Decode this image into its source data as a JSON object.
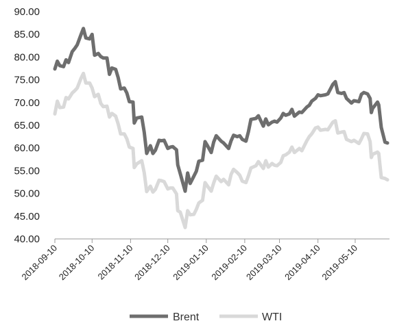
{
  "chart_data": {
    "type": "line",
    "title": "",
    "xlabel": "",
    "ylabel": "",
    "ylim": [
      40,
      90
    ],
    "y_ticks": [
      "40.00",
      "45.00",
      "50.00",
      "55.00",
      "60.00",
      "65.00",
      "70.00",
      "75.00",
      "80.00",
      "85.00",
      "90.00"
    ],
    "x_ticks": [
      "2018-09-10",
      "2018-10-10",
      "2018-11-10",
      "2018-12-10",
      "2019-01-10",
      "2019-02-10",
      "2019-03-10",
      "2019-04-10",
      "2019-05-10"
    ],
    "x_range": [
      "2018-09-10",
      "2019-06-05"
    ],
    "grid": false,
    "legend": "bottom",
    "series": [
      {
        "name": "Brent",
        "color": "#6e6e6e",
        "points": [
          [
            "2018-09-10",
            77.4
          ],
          [
            "2018-09-12",
            79.1
          ],
          [
            "2018-09-14",
            78.1
          ],
          [
            "2018-09-17",
            77.9
          ],
          [
            "2018-09-19",
            79.4
          ],
          [
            "2018-09-21",
            78.8
          ],
          [
            "2018-09-24",
            81.2
          ],
          [
            "2018-09-26",
            81.9
          ],
          [
            "2018-09-28",
            82.7
          ],
          [
            "2018-10-01",
            84.9
          ],
          [
            "2018-10-03",
            86.3
          ],
          [
            "2018-10-05",
            84.2
          ],
          [
            "2018-10-08",
            84.0
          ],
          [
            "2018-10-10",
            85.0
          ],
          [
            "2018-10-12",
            80.4
          ],
          [
            "2018-10-15",
            80.8
          ],
          [
            "2018-10-17",
            80.1
          ],
          [
            "2018-10-19",
            79.8
          ],
          [
            "2018-10-22",
            79.8
          ],
          [
            "2018-10-24",
            76.2
          ],
          [
            "2018-10-26",
            77.6
          ],
          [
            "2018-10-29",
            77.3
          ],
          [
            "2018-10-31",
            75.5
          ],
          [
            "2018-11-02",
            73.0
          ],
          [
            "2018-11-05",
            73.2
          ],
          [
            "2018-11-07",
            72.1
          ],
          [
            "2018-11-09",
            70.2
          ],
          [
            "2018-11-12",
            70.1
          ],
          [
            "2018-11-13",
            65.5
          ],
          [
            "2018-11-15",
            66.6
          ],
          [
            "2018-11-19",
            66.8
          ],
          [
            "2018-11-21",
            63.5
          ],
          [
            "2018-11-23",
            58.8
          ],
          [
            "2018-11-26",
            60.5
          ],
          [
            "2018-11-28",
            58.8
          ],
          [
            "2018-11-30",
            59.5
          ],
          [
            "2018-12-03",
            61.7
          ],
          [
            "2018-12-05",
            61.6
          ],
          [
            "2018-12-07",
            61.7
          ],
          [
            "2018-12-10",
            59.9
          ],
          [
            "2018-12-12",
            60.2
          ],
          [
            "2018-12-14",
            60.3
          ],
          [
            "2018-12-17",
            59.6
          ],
          [
            "2018-12-18",
            56.3
          ],
          [
            "2018-12-20",
            54.4
          ],
          [
            "2018-12-24",
            50.5
          ],
          [
            "2018-12-26",
            54.5
          ],
          [
            "2018-12-28",
            52.2
          ],
          [
            "2018-12-31",
            53.8
          ],
          [
            "2019-01-02",
            54.9
          ],
          [
            "2019-01-04",
            57.1
          ],
          [
            "2019-01-07",
            57.3
          ],
          [
            "2019-01-09",
            61.4
          ],
          [
            "2019-01-11",
            60.5
          ],
          [
            "2019-01-14",
            59.0
          ],
          [
            "2019-01-16",
            61.3
          ],
          [
            "2019-01-18",
            62.7
          ],
          [
            "2019-01-22",
            61.5
          ],
          [
            "2019-01-24",
            61.1
          ],
          [
            "2019-01-28",
            59.9
          ],
          [
            "2019-01-30",
            61.6
          ],
          [
            "2019-02-01",
            62.8
          ],
          [
            "2019-02-04",
            62.5
          ],
          [
            "2019-02-06",
            62.7
          ],
          [
            "2019-02-08",
            61.9
          ],
          [
            "2019-02-11",
            61.5
          ],
          [
            "2019-02-13",
            63.6
          ],
          [
            "2019-02-15",
            66.3
          ],
          [
            "2019-02-19",
            66.5
          ],
          [
            "2019-02-21",
            67.1
          ],
          [
            "2019-02-25",
            64.8
          ],
          [
            "2019-02-27",
            66.4
          ],
          [
            "2019-03-01",
            65.1
          ],
          [
            "2019-03-04",
            65.7
          ],
          [
            "2019-03-06",
            65.9
          ],
          [
            "2019-03-08",
            65.7
          ],
          [
            "2019-03-11",
            66.6
          ],
          [
            "2019-03-13",
            67.6
          ],
          [
            "2019-03-15",
            67.2
          ],
          [
            "2019-03-18",
            67.5
          ],
          [
            "2019-03-20",
            68.5
          ],
          [
            "2019-03-22",
            67.0
          ],
          [
            "2019-03-26",
            67.9
          ],
          [
            "2019-03-28",
            67.8
          ],
          [
            "2019-04-01",
            69.0
          ],
          [
            "2019-04-03",
            69.4
          ],
          [
            "2019-04-05",
            70.3
          ],
          [
            "2019-04-08",
            70.9
          ],
          [
            "2019-04-10",
            71.7
          ],
          [
            "2019-04-12",
            71.5
          ],
          [
            "2019-04-16",
            71.7
          ],
          [
            "2019-04-18",
            71.9
          ],
          [
            "2019-04-22",
            74.0
          ],
          [
            "2019-04-24",
            74.6
          ],
          [
            "2019-04-26",
            72.2
          ],
          [
            "2019-04-29",
            72.0
          ],
          [
            "2019-05-01",
            72.2
          ],
          [
            "2019-05-03",
            70.9
          ],
          [
            "2019-05-07",
            69.9
          ],
          [
            "2019-05-09",
            70.4
          ],
          [
            "2019-05-13",
            70.2
          ],
          [
            "2019-05-15",
            71.8
          ],
          [
            "2019-05-17",
            72.2
          ],
          [
            "2019-05-20",
            71.9
          ],
          [
            "2019-05-22",
            70.9
          ],
          [
            "2019-05-23",
            67.8
          ],
          [
            "2019-05-24",
            68.7
          ],
          [
            "2019-05-28",
            70.1
          ],
          [
            "2019-05-29",
            69.5
          ],
          [
            "2019-05-31",
            64.5
          ],
          [
            "2019-06-03",
            61.3
          ],
          [
            "2019-06-05",
            61.1
          ]
        ]
      },
      {
        "name": "WTI",
        "color": "#d9d9d9",
        "points": [
          [
            "2018-09-10",
            67.5
          ],
          [
            "2018-09-12",
            70.3
          ],
          [
            "2018-09-14",
            68.9
          ],
          [
            "2018-09-17",
            69.0
          ],
          [
            "2018-09-19",
            71.1
          ],
          [
            "2018-09-21",
            70.8
          ],
          [
            "2018-09-24",
            72.1
          ],
          [
            "2018-09-26",
            72.6
          ],
          [
            "2018-09-28",
            73.2
          ],
          [
            "2018-10-01",
            75.3
          ],
          [
            "2018-10-03",
            76.4
          ],
          [
            "2018-10-05",
            74.3
          ],
          [
            "2018-10-08",
            74.3
          ],
          [
            "2018-10-10",
            73.2
          ],
          [
            "2018-10-12",
            71.3
          ],
          [
            "2018-10-15",
            71.8
          ],
          [
            "2018-10-17",
            69.8
          ],
          [
            "2018-10-19",
            69.1
          ],
          [
            "2018-10-22",
            69.2
          ],
          [
            "2018-10-24",
            66.8
          ],
          [
            "2018-10-26",
            67.6
          ],
          [
            "2018-10-29",
            67.0
          ],
          [
            "2018-10-31",
            65.3
          ],
          [
            "2018-11-02",
            63.1
          ],
          [
            "2018-11-05",
            63.1
          ],
          [
            "2018-11-07",
            62.0
          ],
          [
            "2018-11-09",
            60.2
          ],
          [
            "2018-11-12",
            59.9
          ],
          [
            "2018-11-13",
            55.7
          ],
          [
            "2018-11-15",
            56.5
          ],
          [
            "2018-11-19",
            57.2
          ],
          [
            "2018-11-21",
            54.6
          ],
          [
            "2018-11-23",
            50.4
          ],
          [
            "2018-11-26",
            51.6
          ],
          [
            "2018-11-28",
            50.3
          ],
          [
            "2018-11-30",
            50.9
          ],
          [
            "2018-12-03",
            52.9
          ],
          [
            "2018-12-05",
            52.8
          ],
          [
            "2018-12-07",
            52.6
          ],
          [
            "2018-12-10",
            51.0
          ],
          [
            "2018-12-12",
            51.2
          ],
          [
            "2018-12-14",
            51.2
          ],
          [
            "2018-12-17",
            49.9
          ],
          [
            "2018-12-18",
            46.2
          ],
          [
            "2018-12-20",
            45.9
          ],
          [
            "2018-12-24",
            42.5
          ],
          [
            "2018-12-26",
            46.2
          ],
          [
            "2018-12-28",
            45.3
          ],
          [
            "2018-12-31",
            45.4
          ],
          [
            "2019-01-02",
            46.5
          ],
          [
            "2019-01-04",
            47.9
          ],
          [
            "2019-01-07",
            48.5
          ],
          [
            "2019-01-09",
            52.4
          ],
          [
            "2019-01-11",
            51.6
          ],
          [
            "2019-01-14",
            50.5
          ],
          [
            "2019-01-16",
            52.3
          ],
          [
            "2019-01-18",
            53.8
          ],
          [
            "2019-01-22",
            52.6
          ],
          [
            "2019-01-24",
            53.1
          ],
          [
            "2019-01-28",
            51.9
          ],
          [
            "2019-01-30",
            54.2
          ],
          [
            "2019-02-01",
            55.3
          ],
          [
            "2019-02-04",
            54.6
          ],
          [
            "2019-02-06",
            54.0
          ],
          [
            "2019-02-08",
            52.7
          ],
          [
            "2019-02-11",
            52.4
          ],
          [
            "2019-02-13",
            53.9
          ],
          [
            "2019-02-15",
            55.6
          ],
          [
            "2019-02-19",
            56.1
          ],
          [
            "2019-02-21",
            57.0
          ],
          [
            "2019-02-25",
            55.5
          ],
          [
            "2019-02-27",
            57.2
          ],
          [
            "2019-03-01",
            55.8
          ],
          [
            "2019-03-04",
            56.6
          ],
          [
            "2019-03-06",
            56.2
          ],
          [
            "2019-03-08",
            56.1
          ],
          [
            "2019-03-11",
            56.8
          ],
          [
            "2019-03-13",
            58.3
          ],
          [
            "2019-03-15",
            58.5
          ],
          [
            "2019-03-18",
            59.1
          ],
          [
            "2019-03-20",
            60.2
          ],
          [
            "2019-03-22",
            59.0
          ],
          [
            "2019-03-26",
            59.9
          ],
          [
            "2019-03-28",
            59.4
          ],
          [
            "2019-04-01",
            61.6
          ],
          [
            "2019-04-03",
            62.5
          ],
          [
            "2019-04-05",
            63.1
          ],
          [
            "2019-04-08",
            64.4
          ],
          [
            "2019-04-10",
            64.6
          ],
          [
            "2019-04-12",
            63.9
          ],
          [
            "2019-04-16",
            64.1
          ],
          [
            "2019-04-18",
            64.0
          ],
          [
            "2019-04-22",
            65.7
          ],
          [
            "2019-04-24",
            66.0
          ],
          [
            "2019-04-26",
            63.3
          ],
          [
            "2019-04-29",
            63.5
          ],
          [
            "2019-05-01",
            63.6
          ],
          [
            "2019-05-03",
            61.9
          ],
          [
            "2019-05-07",
            61.4
          ],
          [
            "2019-05-09",
            61.7
          ],
          [
            "2019-05-13",
            61.0
          ],
          [
            "2019-05-15",
            62.0
          ],
          [
            "2019-05-17",
            63.2
          ],
          [
            "2019-05-20",
            63.1
          ],
          [
            "2019-05-22",
            61.4
          ],
          [
            "2019-05-23",
            57.9
          ],
          [
            "2019-05-24",
            58.6
          ],
          [
            "2019-05-28",
            59.1
          ],
          [
            "2019-05-29",
            58.8
          ],
          [
            "2019-05-31",
            53.5
          ],
          [
            "2019-06-03",
            53.3
          ],
          [
            "2019-06-05",
            53.0
          ]
        ]
      }
    ]
  }
}
